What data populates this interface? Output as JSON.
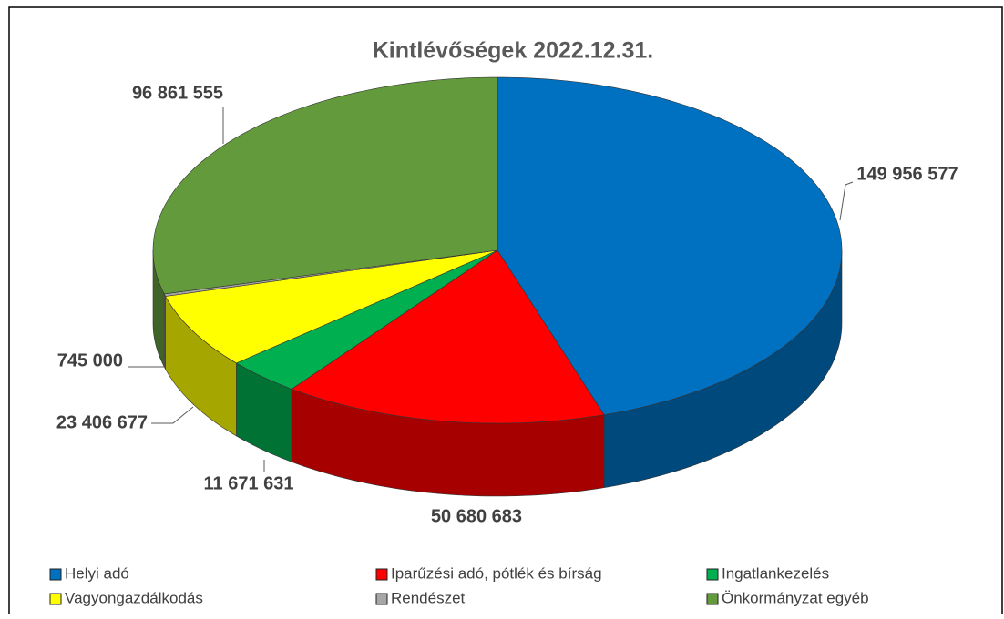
{
  "chart_data": {
    "type": "pie3d",
    "title": "Kintlévőségek 2022.12.31.",
    "categories": [
      "Helyi adó",
      "Iparűzési adó, pótlék és bírság",
      "Ingatlankezelés",
      "Vagyongazdálkodás",
      "Rendészet",
      "Önkormányzat egyéb"
    ],
    "values": [
      149956577,
      50680683,
      11671631,
      23406677,
      745000,
      96861555
    ],
    "value_labels": [
      "149 956 577",
      "50 680 683",
      "11 671 631",
      "23 406 677",
      "745 000",
      "96 861 555"
    ],
    "colors": [
      "#0070c0",
      "#ff0000",
      "#00b050",
      "#ffff00",
      "#a6a6a6",
      "#629a3c"
    ],
    "legend": "bottom"
  }
}
